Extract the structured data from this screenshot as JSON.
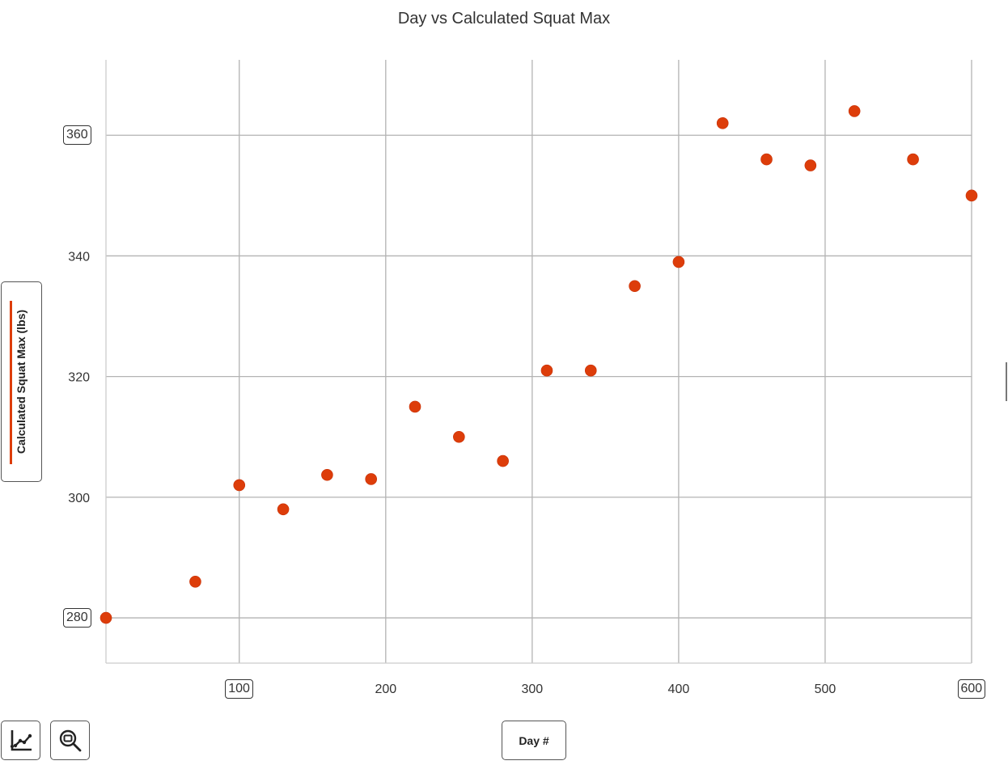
{
  "chart_data": {
    "type": "scatter",
    "title": "Day vs Calculated Squat Max",
    "xlabel": "Day #",
    "ylabel": "Calculated Squat Max (lbs)",
    "xlim": [
      9,
      600
    ],
    "ylim": [
      272.5,
      372.5
    ],
    "x_ticks": [
      100,
      200,
      300,
      400,
      500,
      600
    ],
    "y_ticks": [
      280,
      300,
      320,
      340,
      360
    ],
    "boxed_x_ticks": [
      100,
      600
    ],
    "boxed_y_ticks": [
      280,
      360
    ],
    "grid": true,
    "series": [
      {
        "color": "#dd3d0a",
        "x": [
          9,
          70,
          100,
          130,
          160,
          190,
          220,
          250,
          280,
          310,
          340,
          370,
          400,
          430,
          460,
          490,
          520,
          560,
          600
        ],
        "y": [
          280,
          286,
          302,
          298,
          303.7,
          303,
          315,
          310,
          306,
          321,
          321,
          335,
          339,
          362,
          356,
          355,
          364,
          356,
          350
        ]
      }
    ]
  },
  "toolbar": {
    "trendline_icon": "trendline-chart-icon",
    "zoom_icon": "zoom-magnifier-icon"
  }
}
